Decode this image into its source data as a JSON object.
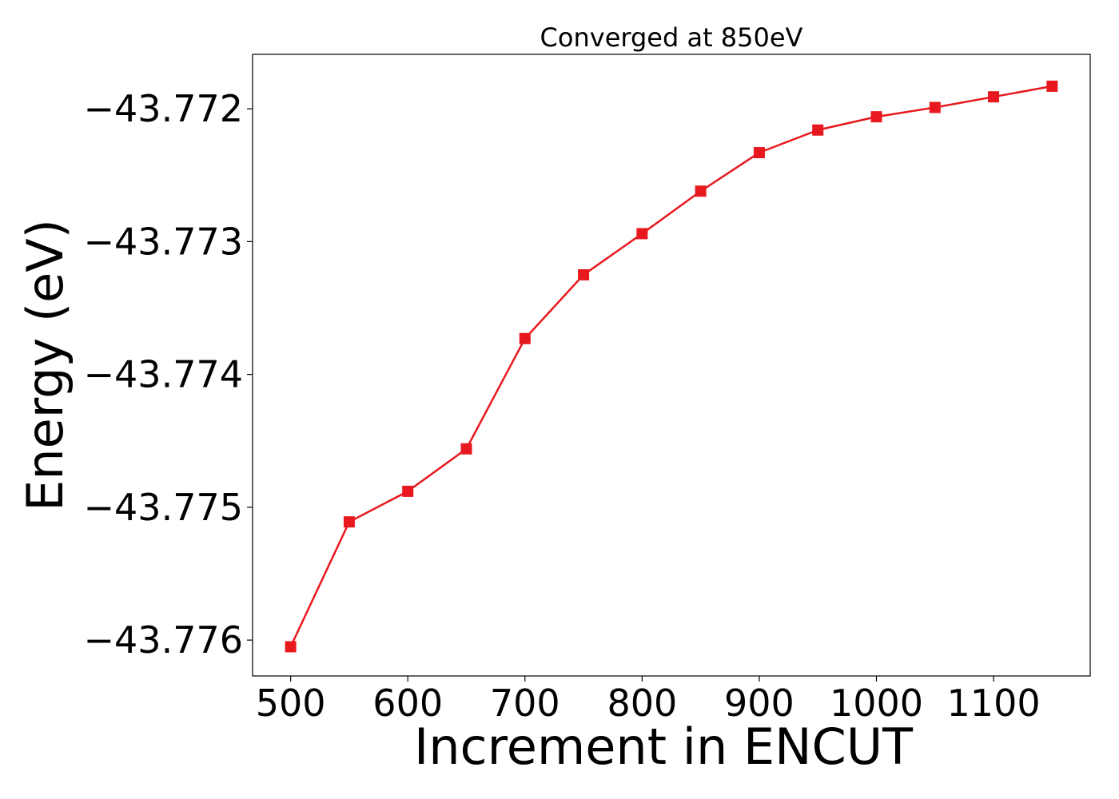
{
  "chart_data": {
    "type": "line",
    "title": "Converged at 850eV",
    "xlabel": "Increment in ENCUT",
    "ylabel": "Energy (eV)",
    "xlim": [
      467.5,
      1182.5
    ],
    "ylim": [
      -43.77627,
      -43.77159
    ],
    "x_ticks": [
      500,
      600,
      700,
      800,
      900,
      1000,
      1100
    ],
    "x_tick_labels": [
      "500",
      "600",
      "700",
      "800",
      "900",
      "1000",
      "1100"
    ],
    "y_ticks": [
      -43.772,
      -43.773,
      -43.774,
      -43.775,
      -43.776
    ],
    "y_tick_labels": [
      "−43.772",
      "−43.773",
      "−43.774",
      "−43.775",
      "−43.776"
    ],
    "grid": false,
    "series": [
      {
        "color": "#e8191e",
        "marker": "square",
        "x": [
          500,
          550,
          600,
          650,
          700,
          750,
          800,
          850,
          900,
          950,
          1000,
          1050,
          1100,
          1150
        ],
        "y": [
          -43.77605,
          -43.77511,
          -43.77488,
          -43.77456,
          -43.77373,
          -43.77325,
          -43.77294,
          -43.77262,
          -43.77233,
          -43.77216,
          -43.77206,
          -43.77199,
          -43.77191,
          -43.77183
        ]
      }
    ]
  }
}
